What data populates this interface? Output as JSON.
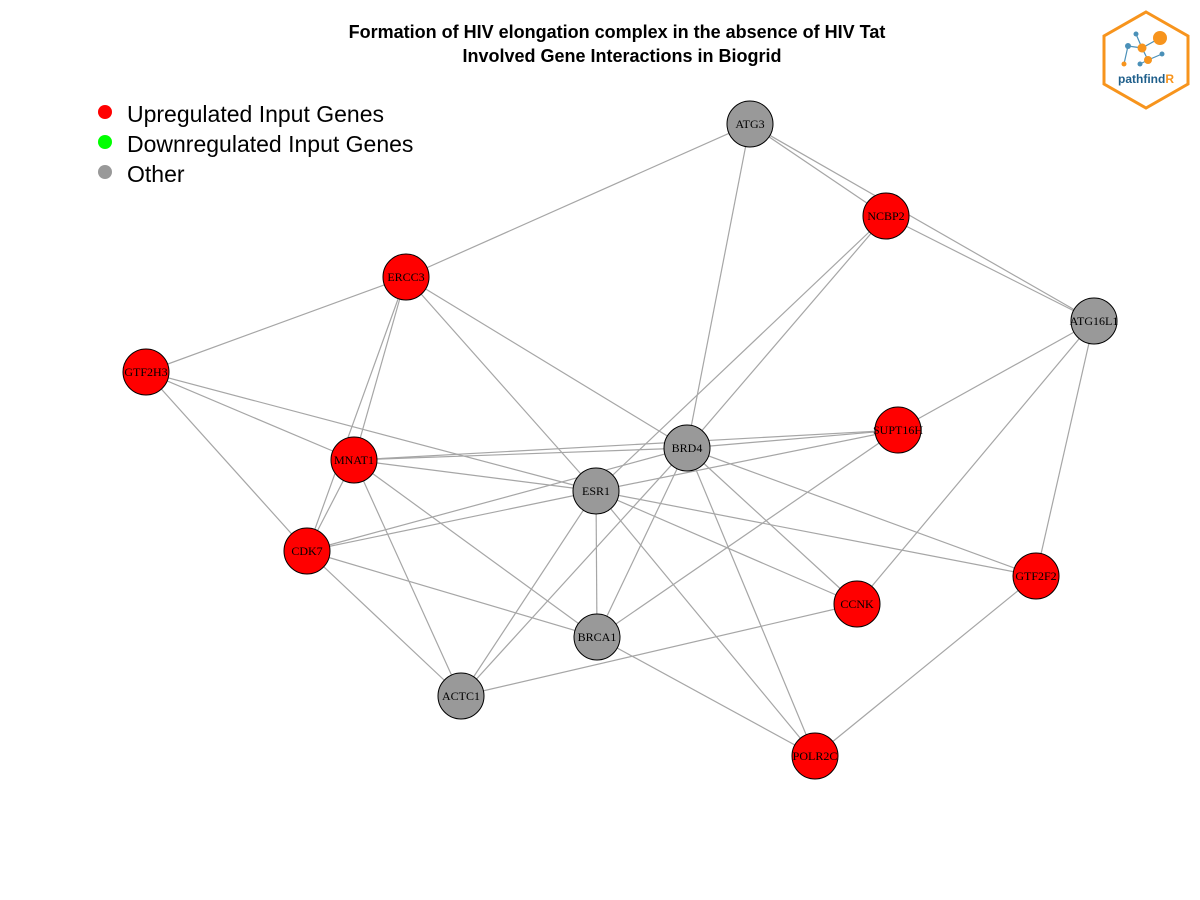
{
  "title": {
    "line1": "Formation of HIV elongation complex in the absence of HIV Tat",
    "line2": "Involved Gene Interactions in Biogrid"
  },
  "legend": [
    {
      "label": "Upregulated Input Genes",
      "color": "#ff0000"
    },
    {
      "label": "Downregulated Input Genes",
      "color": "#00ff00"
    },
    {
      "label": "Other",
      "color": "#999999"
    }
  ],
  "logo": {
    "text_main": "pathfind",
    "text_accent": "R",
    "color_main": "#1f5f8b",
    "color_accent": "#f7941d"
  },
  "colors": {
    "up": "#ff0000",
    "down": "#00ff00",
    "other": "#999999",
    "edge": "#a6a6a6"
  },
  "nodes": [
    {
      "id": "ATG3",
      "group": "other"
    },
    {
      "id": "NCBP2",
      "group": "up"
    },
    {
      "id": "ERCC3",
      "group": "up"
    },
    {
      "id": "ATG16L1",
      "group": "other"
    },
    {
      "id": "GTF2H3",
      "group": "up"
    },
    {
      "id": "SUPT16H",
      "group": "up"
    },
    {
      "id": "BRD4",
      "group": "other"
    },
    {
      "id": "MNAT1",
      "group": "up"
    },
    {
      "id": "ESR1",
      "group": "other"
    },
    {
      "id": "CDK7",
      "group": "up"
    },
    {
      "id": "GTF2F2",
      "group": "up"
    },
    {
      "id": "CCNK",
      "group": "up"
    },
    {
      "id": "BRCA1",
      "group": "other"
    },
    {
      "id": "ACTC1",
      "group": "other"
    },
    {
      "id": "POLR2C",
      "group": "up"
    }
  ],
  "edges": [
    [
      "ATG3",
      "ERCC3"
    ],
    [
      "ATG3",
      "NCBP2"
    ],
    [
      "ATG3",
      "ATG16L1"
    ],
    [
      "ATG3",
      "BRD4"
    ],
    [
      "NCBP2",
      "ATG16L1"
    ],
    [
      "NCBP2",
      "BRD4"
    ],
    [
      "NCBP2",
      "ESR1"
    ],
    [
      "ATG16L1",
      "SUPT16H"
    ],
    [
      "ATG16L1",
      "CCNK"
    ],
    [
      "ATG16L1",
      "GTF2F2"
    ],
    [
      "ERCC3",
      "GTF2H3"
    ],
    [
      "ERCC3",
      "MNAT1"
    ],
    [
      "ERCC3",
      "CDK7"
    ],
    [
      "ERCC3",
      "ESR1"
    ],
    [
      "ERCC3",
      "BRD4"
    ],
    [
      "GTF2H3",
      "MNAT1"
    ],
    [
      "GTF2H3",
      "CDK7"
    ],
    [
      "GTF2H3",
      "ESR1"
    ],
    [
      "MNAT1",
      "CDK7"
    ],
    [
      "MNAT1",
      "ESR1"
    ],
    [
      "MNAT1",
      "BRD4"
    ],
    [
      "MNAT1",
      "BRCA1"
    ],
    [
      "MNAT1",
      "ACTC1"
    ],
    [
      "MNAT1",
      "SUPT16H"
    ],
    [
      "CDK7",
      "ESR1"
    ],
    [
      "CDK7",
      "BRD4"
    ],
    [
      "CDK7",
      "BRCA1"
    ],
    [
      "CDK7",
      "ACTC1"
    ],
    [
      "ESR1",
      "SUPT16H"
    ],
    [
      "ESR1",
      "BRCA1"
    ],
    [
      "ESR1",
      "ACTC1"
    ],
    [
      "ESR1",
      "CCNK"
    ],
    [
      "ESR1",
      "GTF2F2"
    ],
    [
      "ESR1",
      "POLR2C"
    ],
    [
      "BRD4",
      "SUPT16H"
    ],
    [
      "BRD4",
      "BRCA1"
    ],
    [
      "BRD4",
      "ACTC1"
    ],
    [
      "BRD4",
      "CCNK"
    ],
    [
      "BRD4",
      "GTF2F2"
    ],
    [
      "BRD4",
      "POLR2C"
    ],
    [
      "SUPT16H",
      "BRCA1"
    ],
    [
      "CCNK",
      "ACTC1"
    ],
    [
      "GTF2F2",
      "POLR2C"
    ],
    [
      "BRCA1",
      "POLR2C"
    ]
  ]
}
